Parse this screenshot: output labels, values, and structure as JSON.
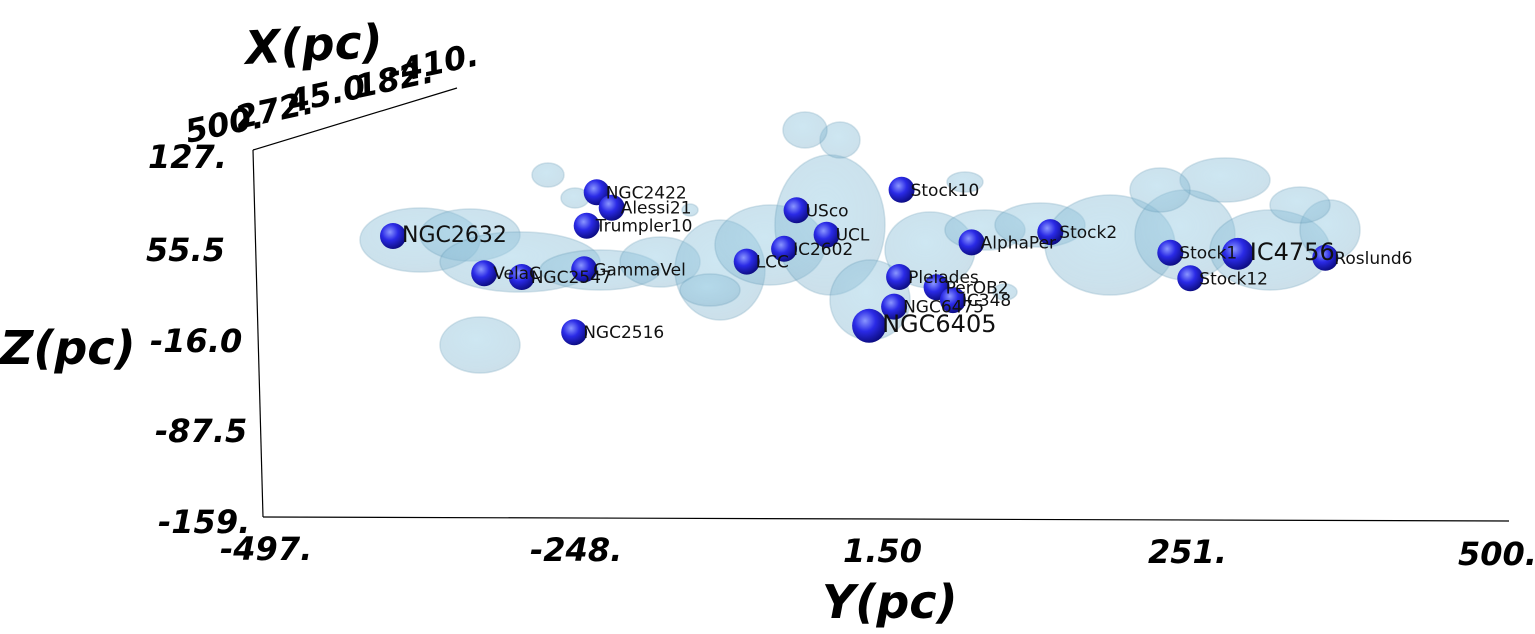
{
  "chart_data": {
    "type": "scatter",
    "x_axis_title": "X(pc)",
    "y_axis_title": "Y(pc)",
    "z_axis_title": "Z(pc)",
    "x_ticks": [
      "500.",
      "272.",
      "45.0",
      "182.",
      "-410."
    ],
    "y_ticks": [
      "-497.",
      "-248.",
      "1.50",
      "251.",
      "500."
    ],
    "z_ticks": [
      "127.",
      "55.5",
      "-16.0",
      "-87.5",
      "-159."
    ],
    "y_range": [
      -497,
      500
    ],
    "z_range": [
      -159,
      127
    ],
    "colors": {
      "sphere": "#2323e0",
      "sphere_highlight": "#7a8cff",
      "cloud": "#8fc3dc",
      "cloud_edge": "#5f97b4"
    },
    "clusters": [
      {
        "name": "NGC2422",
        "y": -230,
        "z": 94
      },
      {
        "name": "Alessi21",
        "y": -218,
        "z": 82
      },
      {
        "name": "Trumpler10",
        "y": -238,
        "z": 68
      },
      {
        "name": "NGC2632",
        "y": -393,
        "z": 60
      },
      {
        "name": "VelaC",
        "y": -320,
        "z": 31
      },
      {
        "name": "GammaVel",
        "y": -240,
        "z": 34
      },
      {
        "name": "NGC2547",
        "y": -290,
        "z": 28
      },
      {
        "name": "NGC2516",
        "y": -248,
        "z": -15
      },
      {
        "name": "USco",
        "y": -70,
        "z": 80
      },
      {
        "name": "UCL",
        "y": -46,
        "z": 61
      },
      {
        "name": "IC2602",
        "y": -80,
        "z": 50
      },
      {
        "name": "LCC",
        "y": -110,
        "z": 40
      },
      {
        "name": "Stock10",
        "y": 14,
        "z": 96
      },
      {
        "name": "Pleiades",
        "y": 12,
        "z": 28
      },
      {
        "name": "PerOB2",
        "y": 42,
        "z": 20
      },
      {
        "name": "IC348",
        "y": 55,
        "z": 10
      },
      {
        "name": "NGC6475",
        "y": 8,
        "z": 5
      },
      {
        "name": "NGC6405",
        "y": -12,
        "z": -10
      },
      {
        "name": "AlphaPer",
        "y": 70,
        "z": 55
      },
      {
        "name": "Stock2",
        "y": 133,
        "z": 63
      },
      {
        "name": "Stock1",
        "y": 229,
        "z": 47
      },
      {
        "name": "IC4756",
        "y": 283,
        "z": 46
      },
      {
        "name": "Roslund6",
        "y": 353,
        "z": 43
      },
      {
        "name": "Stock12",
        "y": 245,
        "z": 27
      }
    ]
  }
}
